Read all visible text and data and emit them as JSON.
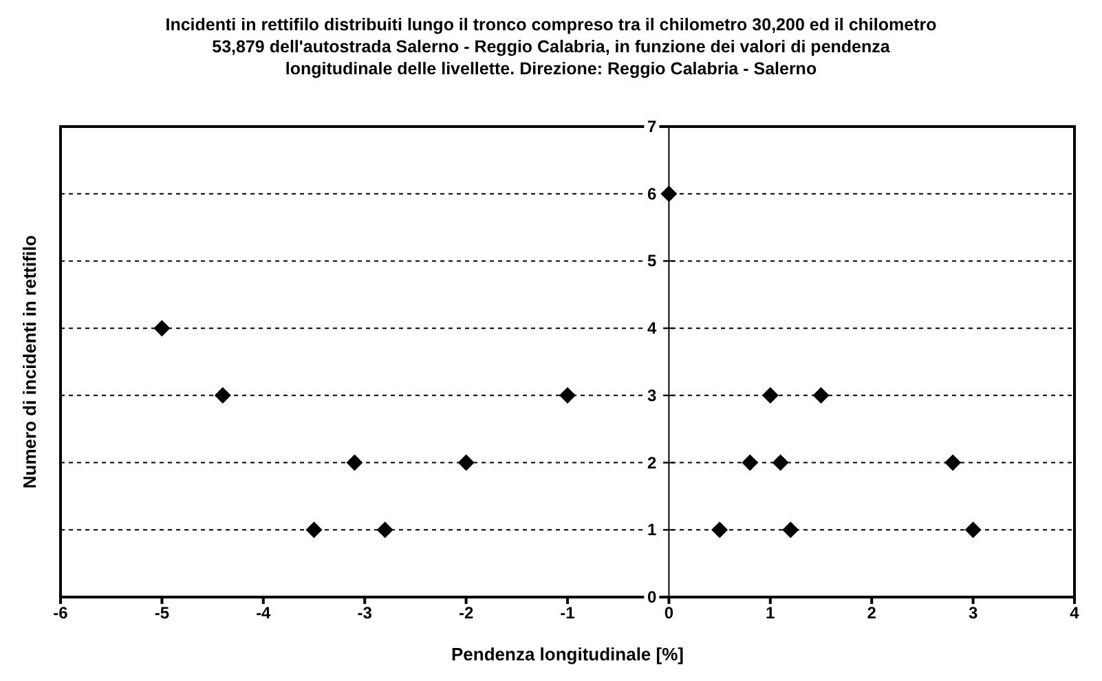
{
  "chart_data": {
    "type": "scatter",
    "title": "Incidenti in rettifilo distribuiti lungo il tronco compreso tra il chilometro 30,200 ed il chilometro 53,879 dell'autostrada Salerno - Reggio Calabria, in funzione dei valori di pendenza longitudinale delle livellette. Direzione: Reggio Calabria - Salerno",
    "xlabel": "Pendenza longitudinale [%]",
    "ylabel": "Numero di incidenti in rettifilo",
    "series": [
      {
        "color": "#000000",
        "x": [
          -5,
          -4.4,
          -1,
          -3.1,
          -2,
          -3.5,
          -2.8,
          0,
          1,
          1.5,
          0.8,
          1.1,
          2.8,
          0.5,
          1.2,
          3
        ],
        "values": [
          4,
          3,
          3,
          2,
          2,
          1,
          1,
          6,
          3,
          3,
          2,
          2,
          2,
          1,
          1,
          1
        ]
      }
    ],
    "xlim": [
      -6,
      4
    ],
    "xticks": [
      -6,
      -5,
      -4,
      -3,
      -2,
      -1,
      0,
      1,
      2,
      3,
      4
    ],
    "ylim": [
      0,
      7
    ],
    "yticks": [
      0,
      1,
      2,
      3,
      4,
      5,
      6,
      7
    ],
    "grid": "y",
    "legend": false,
    "marker": "diamond"
  }
}
